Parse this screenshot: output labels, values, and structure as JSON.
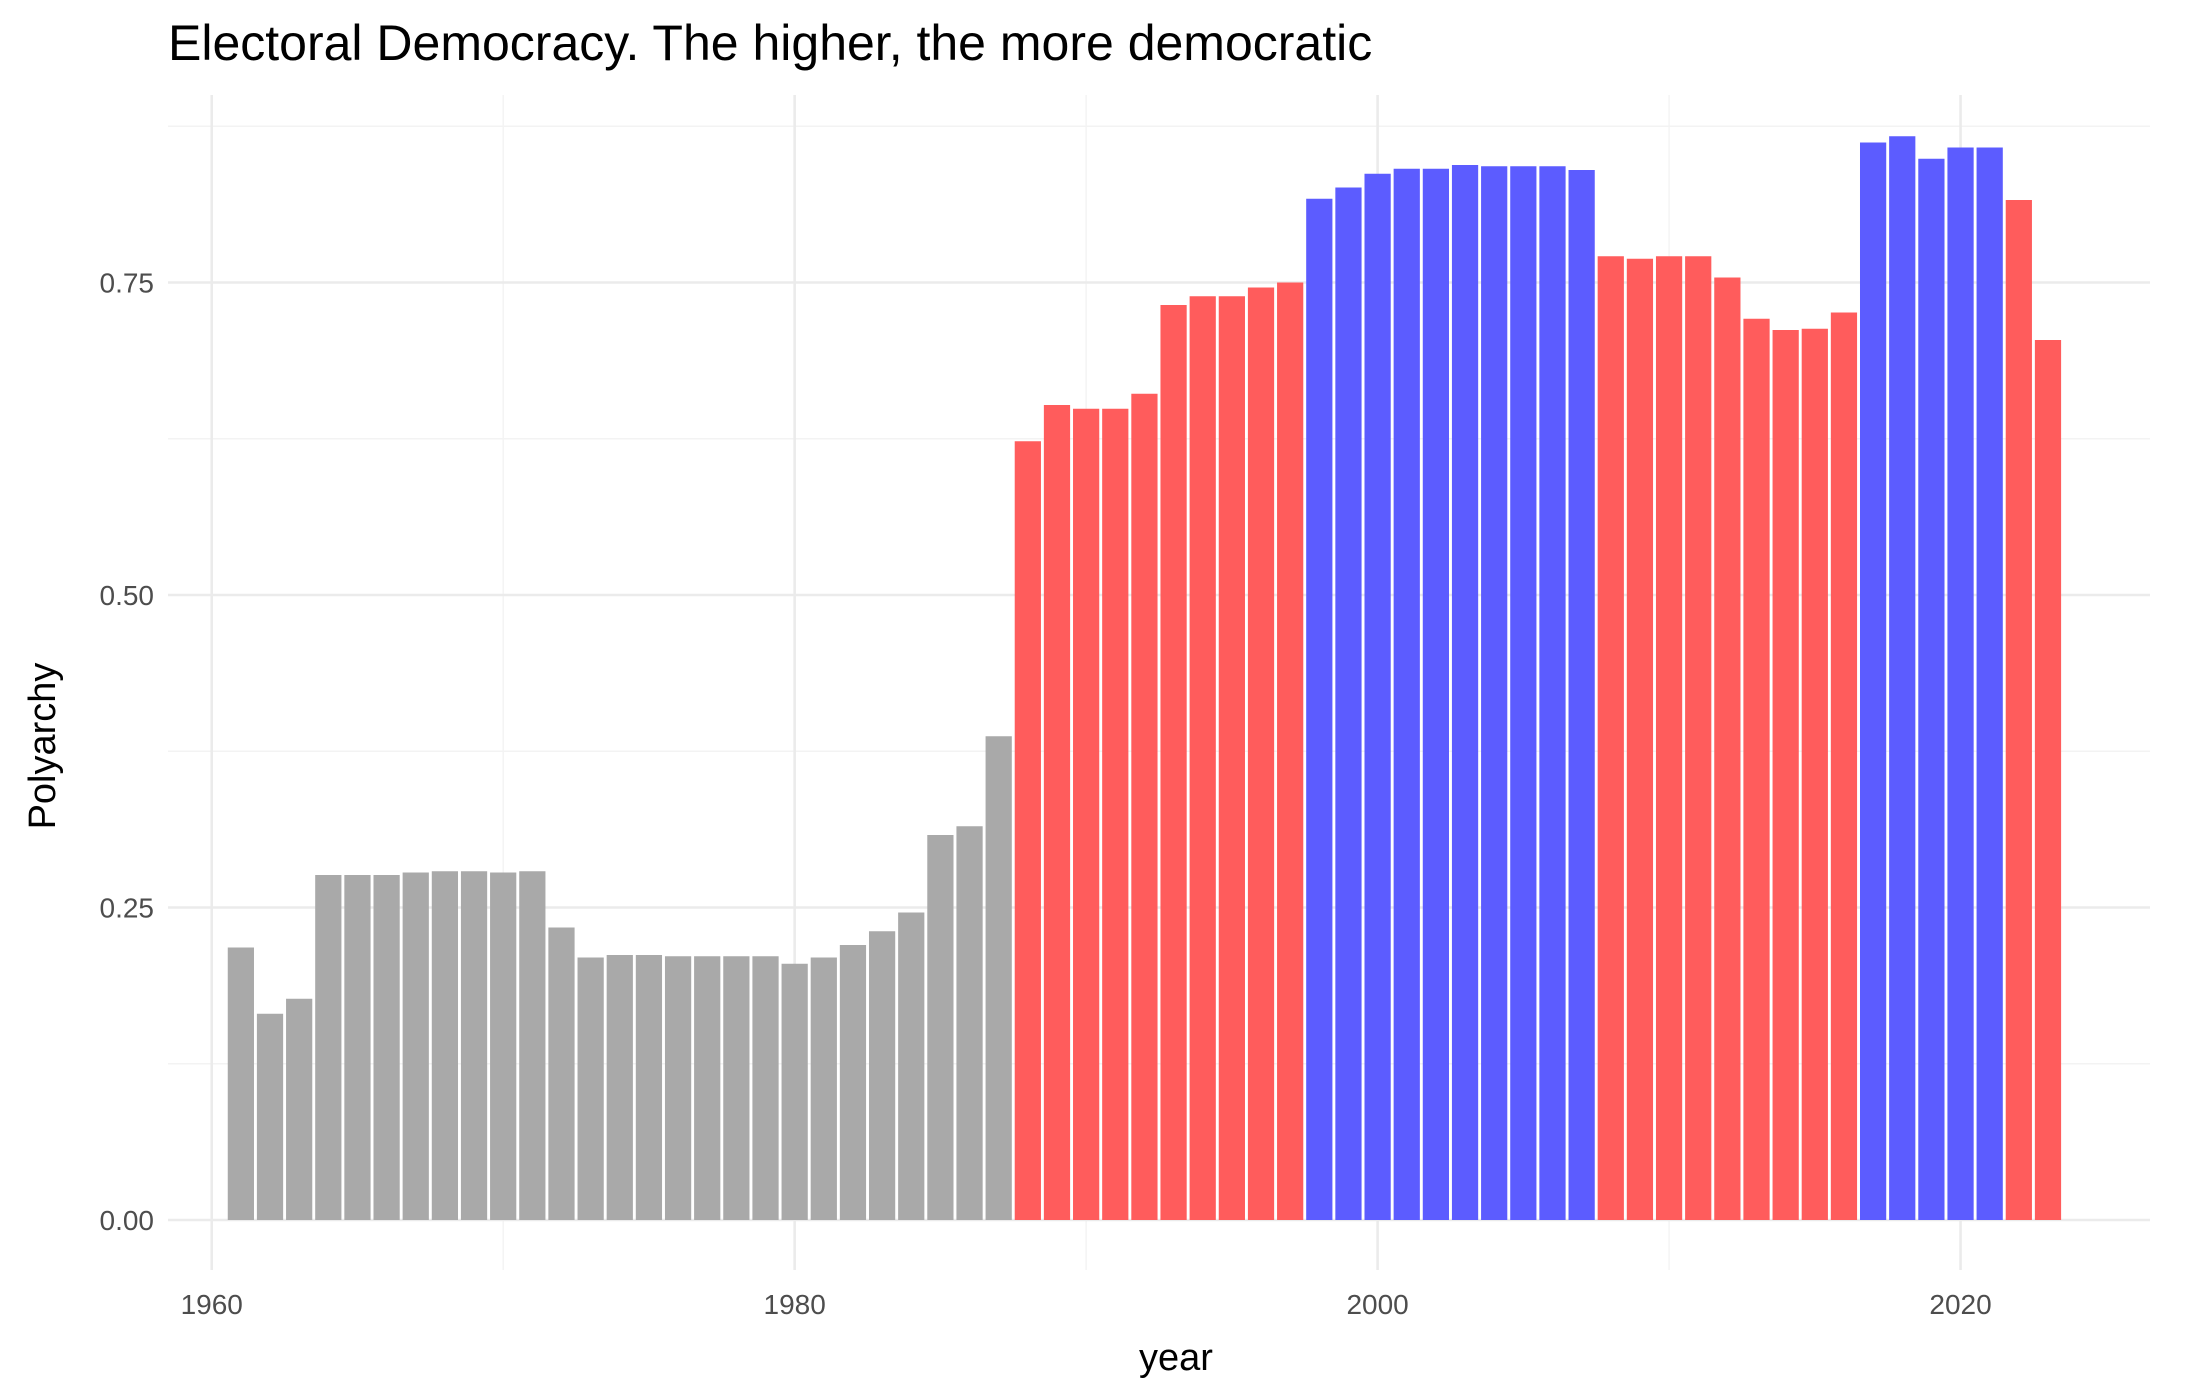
{
  "chart_data": {
    "type": "bar",
    "title": "Electoral Democracy. The higher, the more democratic",
    "xlabel": "year",
    "ylabel": "Polyarchy",
    "xlim": [
      1958.5,
      2026.5
    ],
    "ylim": [
      -0.04,
      0.9
    ],
    "x_ticks": [
      1960,
      1980,
      2000,
      2020
    ],
    "x_tick_labels": [
      "1960",
      "1980",
      "2000",
      "2020"
    ],
    "y_ticks": [
      0,
      0.25,
      0.5,
      0.75
    ],
    "y_tick_labels": [
      "0.00",
      "0.25",
      "0.50",
      "0.75"
    ],
    "grid": true,
    "colors": {
      "grey": "#a9a9a9",
      "red": "#ff5c5c",
      "blue": "#5c5cff"
    },
    "years": [
      1961,
      1962,
      1963,
      1964,
      1965,
      1966,
      1967,
      1968,
      1969,
      1970,
      1971,
      1972,
      1973,
      1974,
      1975,
      1976,
      1977,
      1978,
      1979,
      1980,
      1981,
      1982,
      1983,
      1984,
      1985,
      1986,
      1987,
      1988,
      1989,
      1990,
      1991,
      1992,
      1993,
      1994,
      1995,
      1996,
      1997,
      1998,
      1999,
      2000,
      2001,
      2002,
      2003,
      2004,
      2005,
      2006,
      2007,
      2008,
      2009,
      2010,
      2011,
      2012,
      2013,
      2014,
      2015,
      2016,
      2017,
      2018,
      2019,
      2020,
      2021,
      2022,
      2023
    ],
    "values": [
      0.218,
      0.165,
      0.177,
      0.276,
      0.276,
      0.276,
      0.278,
      0.279,
      0.279,
      0.278,
      0.279,
      0.234,
      0.21,
      0.212,
      0.212,
      0.211,
      0.211,
      0.211,
      0.211,
      0.205,
      0.21,
      0.22,
      0.231,
      0.246,
      0.308,
      0.315,
      0.387,
      0.623,
      0.652,
      0.649,
      0.649,
      0.661,
      0.732,
      0.739,
      0.739,
      0.746,
      0.75,
      0.817,
      0.826,
      0.837,
      0.841,
      0.841,
      0.844,
      0.843,
      0.843,
      0.843,
      0.84,
      0.771,
      0.769,
      0.771,
      0.771,
      0.754,
      0.721,
      0.712,
      0.713,
      0.726,
      0.862,
      0.867,
      0.849,
      0.858,
      0.858,
      0.816,
      0.704
    ],
    "groups": [
      "grey",
      "grey",
      "grey",
      "grey",
      "grey",
      "grey",
      "grey",
      "grey",
      "grey",
      "grey",
      "grey",
      "grey",
      "grey",
      "grey",
      "grey",
      "grey",
      "grey",
      "grey",
      "grey",
      "grey",
      "grey",
      "grey",
      "grey",
      "grey",
      "grey",
      "grey",
      "grey",
      "red",
      "red",
      "red",
      "red",
      "red",
      "red",
      "red",
      "red",
      "red",
      "red",
      "blue",
      "blue",
      "blue",
      "blue",
      "blue",
      "blue",
      "blue",
      "blue",
      "blue",
      "blue",
      "red",
      "red",
      "red",
      "red",
      "red",
      "red",
      "red",
      "red",
      "red",
      "blue",
      "blue",
      "blue",
      "blue",
      "blue",
      "red",
      "red"
    ]
  }
}
